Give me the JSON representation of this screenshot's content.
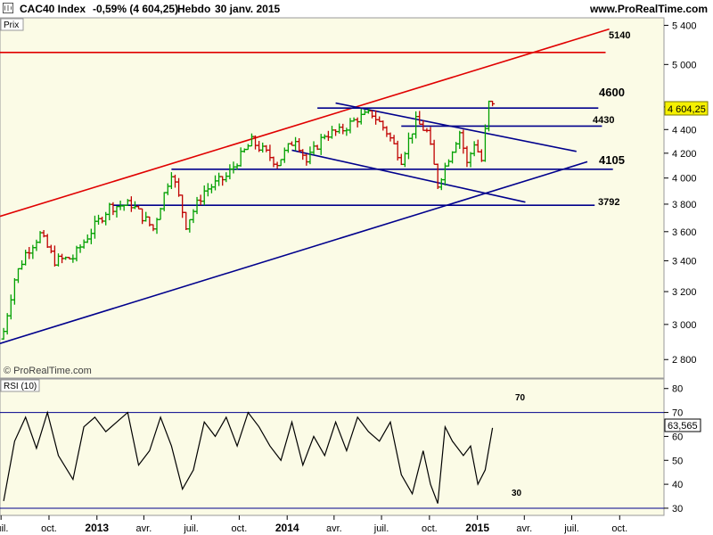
{
  "header": {
    "title": "CAC40 Index",
    "change": "-0,59% (4 604,25)",
    "period": "Hebdo",
    "date": "30 janv. 2015",
    "site": "www.ProRealTime.com"
  },
  "price_panel": {
    "label": "Prix",
    "watermark": "© ProRealTime.com",
    "last_value": "4 604,25",
    "level_labels": [
      "5140",
      "4600",
      "4430",
      "4105",
      "3792"
    ]
  },
  "rsi_panel": {
    "label": "RSI (10)",
    "last_value": "63,565",
    "upper_label": "70",
    "lower_label": "30"
  },
  "colors": {
    "up": "#00a000",
    "down": "#c00000",
    "trend_red": "#e00000",
    "trend_blue": "#00008c",
    "panel_bg": "#fbfbe6",
    "rsi_line": "#000000"
  },
  "chart_data": [
    {
      "type": "ohlc",
      "panel": "price",
      "yscale": "log",
      "ylim": [
        2700,
        5480
      ],
      "yticks": [
        "5 400",
        "5 000",
        "4 600",
        "4 400",
        "4 200",
        "4 000",
        "3 800",
        "3 600",
        "3 400",
        "3 200",
        "3 000",
        "2 800"
      ],
      "ytick_values": [
        5400,
        5000,
        4600,
        4400,
        4200,
        4000,
        3800,
        3600,
        3400,
        3200,
        3000,
        2800
      ],
      "x_start": "2012-06-29",
      "x_end": "2015-12-25",
      "xticks": [
        {
          "label": "juil.",
          "date": "2012-07-01"
        },
        {
          "label": "oct.",
          "date": "2012-10-01"
        },
        {
          "label": "2013",
          "date": "2013-01-01",
          "bold": true
        },
        {
          "label": "avr.",
          "date": "2013-04-01"
        },
        {
          "label": "juil.",
          "date": "2013-07-01"
        },
        {
          "label": "oct.",
          "date": "2013-10-01"
        },
        {
          "label": "2014",
          "date": "2014-01-01",
          "bold": true
        },
        {
          "label": "avr.",
          "date": "2014-04-01"
        },
        {
          "label": "juil.",
          "date": "2014-07-01"
        },
        {
          "label": "oct.",
          "date": "2014-10-01"
        },
        {
          "label": "2015",
          "date": "2015-01-01",
          "bold": true
        },
        {
          "label": "avr.",
          "date": "2015-04-01"
        },
        {
          "label": "juil.",
          "date": "2015-07-01"
        },
        {
          "label": "oct.",
          "date": "2015-10-01"
        }
      ],
      "anchors": [
        {
          "date": "2012-07-06",
          "close": 2960
        },
        {
          "date": "2012-07-27",
          "close": 3280
        },
        {
          "date": "2012-08-17",
          "close": 3450
        },
        {
          "date": "2012-09-14",
          "close": 3580
        },
        {
          "date": "2012-10-12",
          "close": 3400
        },
        {
          "date": "2012-11-16",
          "close": 3420
        },
        {
          "date": "2012-12-28",
          "close": 3640
        },
        {
          "date": "2013-01-25",
          "close": 3780
        },
        {
          "date": "2013-03-08",
          "close": 3800
        },
        {
          "date": "2013-04-19",
          "close": 3620
        },
        {
          "date": "2013-05-24",
          "close": 4050
        },
        {
          "date": "2013-06-21",
          "close": 3650
        },
        {
          "date": "2013-07-26",
          "close": 3900
        },
        {
          "date": "2013-09-06",
          "close": 4010
        },
        {
          "date": "2013-10-25",
          "close": 4300
        },
        {
          "date": "2013-12-13",
          "close": 4120
        },
        {
          "date": "2014-01-17",
          "close": 4330
        },
        {
          "date": "2014-02-07",
          "close": 4130
        },
        {
          "date": "2014-03-14",
          "close": 4360
        },
        {
          "date": "2014-04-11",
          "close": 4380
        },
        {
          "date": "2014-05-16",
          "close": 4500
        },
        {
          "date": "2014-06-13",
          "close": 4540
        },
        {
          "date": "2014-07-11",
          "close": 4380
        },
        {
          "date": "2014-08-08",
          "close": 4150
        },
        {
          "date": "2014-09-05",
          "close": 4470
        },
        {
          "date": "2014-09-26",
          "close": 4380
        },
        {
          "date": "2014-10-17",
          "close": 3950
        },
        {
          "date": "2014-11-28",
          "close": 4380
        },
        {
          "date": "2014-12-12",
          "close": 4110
        },
        {
          "date": "2014-12-26",
          "close": 4290
        },
        {
          "date": "2015-01-09",
          "close": 4140
        },
        {
          "date": "2015-01-23",
          "close": 4630
        },
        {
          "date": "2015-01-30",
          "close": 4604.25
        }
      ],
      "trendlines": [
        {
          "color": "red",
          "x1": "2012-06-29",
          "y1": 3710,
          "x2": "2015-09-11",
          "y2": 5360
        },
        {
          "color": "red",
          "x1": "2012-06-29",
          "y1": 5120,
          "x2": "2015-09-04",
          "y2": 5120
        },
        {
          "color": "blue",
          "x1": "2012-06-29",
          "y1": 2890,
          "x2": "2015-07-31",
          "y2": 4130
        },
        {
          "color": "blue",
          "x1": "2013-02-01",
          "y1": 3792,
          "x2": "2015-08-14",
          "y2": 3792
        },
        {
          "color": "blue",
          "x1": "2013-05-24",
          "y1": 4070,
          "x2": "2015-09-18",
          "y2": 4070
        },
        {
          "color": "blue",
          "x1": "2014-02-28",
          "y1": 4590,
          "x2": "2015-08-21",
          "y2": 4590
        },
        {
          "color": "blue",
          "x1": "2014-08-08",
          "y1": 4430,
          "x2": "2015-08-28",
          "y2": 4430
        },
        {
          "color": "blue",
          "x1": "2014-04-04",
          "y1": 4635,
          "x2": "2015-07-10",
          "y2": 4215
        },
        {
          "color": "blue",
          "x1": "2014-01-10",
          "y1": 4225,
          "x2": "2015-04-03",
          "y2": 3815
        }
      ],
      "levels": [
        5140,
        4600,
        4430,
        4105,
        3792
      ]
    },
    {
      "type": "line",
      "panel": "rsi",
      "name": "RSI (10)",
      "ylim": [
        27,
        84
      ],
      "yticks": [
        80,
        70,
        60,
        50,
        40,
        30
      ],
      "hlines": [
        70,
        30
      ],
      "x": [
        "2012-07-06",
        "2012-07-27",
        "2012-08-17",
        "2012-09-07",
        "2012-09-28",
        "2012-10-19",
        "2012-11-16",
        "2012-12-07",
        "2012-12-28",
        "2013-01-18",
        "2013-02-08",
        "2013-03-01",
        "2013-03-22",
        "2013-04-12",
        "2013-05-03",
        "2013-05-24",
        "2013-06-14",
        "2013-07-05",
        "2013-07-26",
        "2013-08-16",
        "2013-09-06",
        "2013-09-27",
        "2013-10-18",
        "2013-11-08",
        "2013-11-29",
        "2013-12-20",
        "2014-01-10",
        "2014-01-31",
        "2014-02-21",
        "2014-03-14",
        "2014-04-04",
        "2014-04-25",
        "2014-05-16",
        "2014-06-06",
        "2014-06-27",
        "2014-07-18",
        "2014-08-08",
        "2014-08-29",
        "2014-09-19",
        "2014-10-03",
        "2014-10-17",
        "2014-10-31",
        "2014-11-14",
        "2014-12-05",
        "2014-12-19",
        "2015-01-02",
        "2015-01-16",
        "2015-01-30"
      ],
      "values": [
        33,
        58,
        68,
        55,
        70,
        52,
        42,
        64,
        68,
        62,
        66,
        70,
        48,
        54,
        68,
        56,
        38,
        46,
        66,
        60,
        68,
        56,
        70,
        64,
        56,
        50,
        66,
        48,
        60,
        52,
        66,
        54,
        68,
        62,
        58,
        66,
        44,
        36,
        54,
        40,
        32,
        64,
        58,
        52,
        56,
        40,
        46,
        63.565
      ]
    }
  ]
}
